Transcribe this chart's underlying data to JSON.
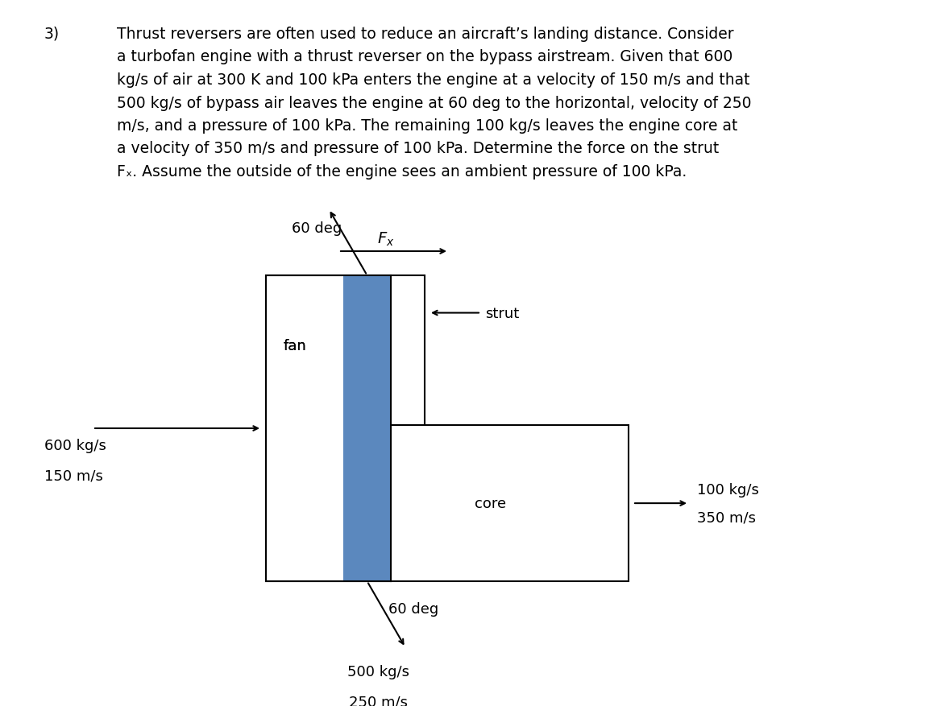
{
  "problem_number": "3)",
  "line1": "Thrust reversers are often used to reduce an aircraft’s landing distance. Consider",
  "line2": "a turbofan engine with a thrust reverser on the bypass airstream. Given that 600",
  "line3": "kg/s of air at 300 K and 100 kPa enters the engine at a velocity of 150 m/s and that",
  "line4": "500 kg/s of bypass air leaves the engine at 60 deg to the horizontal, velocity of 250",
  "line5": "m/s, and a pressure of 100 kPa. The remaining 100 kg/s leaves the engine core at",
  "line6": "a velocity of 350 m/s and pressure of 100 kPa. Determine the force on the strut",
  "line7": "Fₓ. Assume the outside of the engine sees an ambient pressure of 100 kPa.",
  "background_color": "#ffffff",
  "text_color": "#000000",
  "blue_color": "#5b88be",
  "fontsize_body": 13.5,
  "fontsize_labels": 13,
  "fontsize_problem_num": 14
}
